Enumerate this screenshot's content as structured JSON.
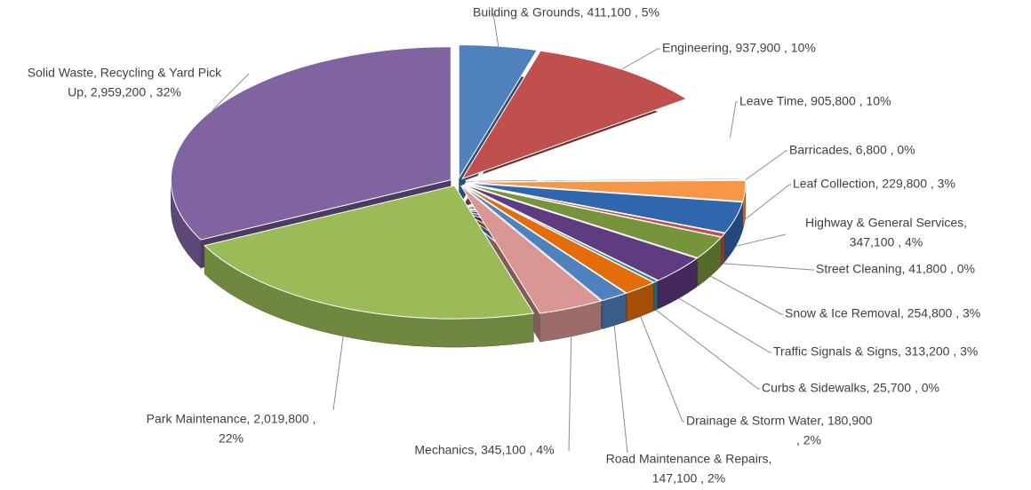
{
  "chart_data": {
    "type": "pie",
    "labels": [
      [
        "Building & Grounds,  411,100 , 5%"
      ],
      [
        "Engineering,  937,900 , 10%"
      ],
      [
        "Leave Time,  905,800 , 10%"
      ],
      [
        "Barricades,  6,800 , 0%"
      ],
      [
        "Leaf Collection,  229,800 , 3%"
      ],
      [
        "Highway & General Services,",
        "347,100 , 4%"
      ],
      [
        "Street Cleaning,  41,800 , 0%"
      ],
      [
        "Snow & Ice Removal,  254,800 , 3%"
      ],
      [
        "Traffic Signals & Signs,  313,200 , 3%"
      ],
      [
        "Curbs & Sidewalks,  25,700 , 0%"
      ],
      [
        "Drainage & Storm Water,  180,900",
        ", 2%"
      ],
      [
        "Road Maintenance & Repairs,",
        "147,100 , 2%"
      ],
      [
        "Mechanics,  345,100 , 4%"
      ],
      [
        "Park Maintenance,  2,019,800 ,",
        "22%"
      ],
      [
        "Solid Waste, Recycling & Yard Pick",
        "Up,  2,959,200 , 32%"
      ]
    ],
    "values": [
      411100,
      937900,
      905800,
      6800,
      229800,
      347100,
      41800,
      254800,
      313200,
      25700,
      180900,
      147100,
      345100,
      2019800,
      2959200
    ],
    "colors": [
      "#4f81bd",
      "#c0504d",
      "#ffffff",
      "#c0504d",
      "#f79646",
      "#2f66ad",
      "#c0504d",
      "#77933c",
      "#5f3b80",
      "#31859c",
      "#e46c0a",
      "#4f81bd",
      "#d99694",
      "#9bbb59",
      "#8064a2"
    ]
  }
}
